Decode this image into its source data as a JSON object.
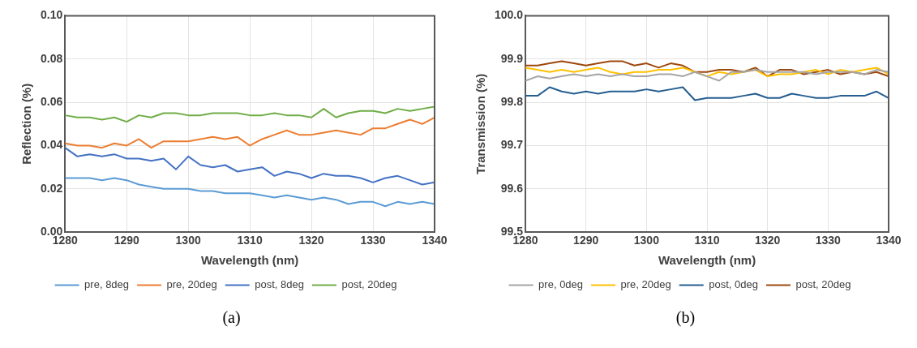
{
  "chart_data": [
    {
      "type": "line",
      "xlabel": "Wavelength (nm)",
      "ylabel": "Reflection (%)",
      "legend": "bottom",
      "grid": true,
      "marker": "none",
      "line_style": "solid",
      "annotations": [
        "(a)"
      ],
      "x": [
        1280,
        1282,
        1284,
        1286,
        1288,
        1290,
        1292,
        1294,
        1296,
        1298,
        1300,
        1302,
        1304,
        1306,
        1308,
        1310,
        1312,
        1314,
        1316,
        1318,
        1320,
        1322,
        1324,
        1326,
        1328,
        1330,
        1332,
        1334,
        1336,
        1338,
        1340
      ],
      "xlim": [
        1280,
        1340
      ],
      "xticks": [
        1280,
        1290,
        1300,
        1310,
        1320,
        1330,
        1340
      ],
      "ylim": [
        0,
        0.1
      ],
      "yticks": [
        {
          "value": 0,
          "label": "0.00"
        },
        {
          "value": 0.02,
          "label": "0.02"
        },
        {
          "value": 0.04,
          "label": "0.04"
        },
        {
          "value": 0.06,
          "label": "0.06"
        },
        {
          "value": 0.08,
          "label": "0.08"
        },
        {
          "value": 0.1,
          "label": "0.10"
        }
      ],
      "series": [
        {
          "name": "pre, 8deg",
          "color": "#5b9bd5",
          "values": [
            0.025,
            0.025,
            0.025,
            0.024,
            0.025,
            0.024,
            0.022,
            0.021,
            0.02,
            0.02,
            0.02,
            0.019,
            0.019,
            0.018,
            0.018,
            0.018,
            0.017,
            0.016,
            0.017,
            0.016,
            0.015,
            0.016,
            0.015,
            0.013,
            0.014,
            0.014,
            0.012,
            0.014,
            0.013,
            0.014,
            0.013
          ]
        },
        {
          "name": "pre, 20deg",
          "color": "#ed7d31",
          "values": [
            0.041,
            0.04,
            0.04,
            0.039,
            0.041,
            0.04,
            0.043,
            0.039,
            0.042,
            0.042,
            0.042,
            0.043,
            0.044,
            0.043,
            0.044,
            0.04,
            0.043,
            0.045,
            0.047,
            0.045,
            0.045,
            0.046,
            0.047,
            0.046,
            0.045,
            0.048,
            0.048,
            0.05,
            0.052,
            0.05,
            0.053
          ]
        },
        {
          "name": "post, 8deg",
          "color": "#4472c4",
          "values": [
            0.039,
            0.035,
            0.036,
            0.035,
            0.036,
            0.034,
            0.034,
            0.033,
            0.034,
            0.029,
            0.035,
            0.031,
            0.03,
            0.031,
            0.028,
            0.029,
            0.03,
            0.026,
            0.028,
            0.027,
            0.025,
            0.027,
            0.026,
            0.026,
            0.025,
            0.023,
            0.025,
            0.026,
            0.024,
            0.022,
            0.023
          ]
        },
        {
          "name": "post, 20deg",
          "color": "#70ad47",
          "values": [
            0.054,
            0.053,
            0.053,
            0.052,
            0.053,
            0.051,
            0.054,
            0.053,
            0.055,
            0.055,
            0.054,
            0.054,
            0.055,
            0.055,
            0.055,
            0.054,
            0.054,
            0.055,
            0.054,
            0.054,
            0.053,
            0.057,
            0.053,
            0.055,
            0.056,
            0.056,
            0.055,
            0.057,
            0.056,
            0.057,
            0.058
          ]
        }
      ]
    },
    {
      "type": "line",
      "xlabel": "Wavelength (nm)",
      "ylabel": "Transmission (%)",
      "legend": "bottom",
      "grid": true,
      "marker": "none",
      "line_style": "solid",
      "annotations": [
        "(b)"
      ],
      "x": [
        1280,
        1282,
        1284,
        1286,
        1288,
        1290,
        1292,
        1294,
        1296,
        1298,
        1300,
        1302,
        1304,
        1306,
        1308,
        1310,
        1312,
        1314,
        1316,
        1318,
        1320,
        1322,
        1324,
        1326,
        1328,
        1330,
        1332,
        1334,
        1336,
        1338,
        1340
      ],
      "xlim": [
        1280,
        1340
      ],
      "xticks": [
        1280,
        1290,
        1300,
        1310,
        1320,
        1330,
        1340
      ],
      "ylim": [
        99.5,
        100
      ],
      "yticks": [
        99.5,
        99.6,
        99.7,
        99.8,
        99.9,
        {
          "value": 100,
          "label": "100.0"
        }
      ],
      "series": [
        {
          "name": "pre, 0deg",
          "color": "#a5a5a5",
          "values": [
            99.85,
            99.86,
            99.855,
            99.86,
            99.865,
            99.86,
            99.865,
            99.86,
            99.865,
            99.86,
            99.86,
            99.865,
            99.865,
            99.86,
            99.87,
            99.86,
            99.85,
            99.87,
            99.87,
            99.875,
            99.87,
            99.87,
            99.87,
            99.87,
            99.865,
            99.87,
            99.87,
            99.87,
            99.865,
            99.875,
            99.87
          ]
        },
        {
          "name": "pre, 20deg",
          "color": "#ffc000",
          "values": [
            99.88,
            99.875,
            99.87,
            99.875,
            99.87,
            99.875,
            99.88,
            99.87,
            99.865,
            99.87,
            99.87,
            99.875,
            99.875,
            99.88,
            99.87,
            99.86,
            99.87,
            99.865,
            99.87,
            99.875,
            99.86,
            99.865,
            99.865,
            99.87,
            99.875,
            99.865,
            99.875,
            99.87,
            99.875,
            99.88,
            99.865
          ]
        },
        {
          "name": "post, 0deg",
          "color": "#255e91",
          "values": [
            99.815,
            99.815,
            99.835,
            99.825,
            99.82,
            99.825,
            99.82,
            99.825,
            99.825,
            99.825,
            99.83,
            99.825,
            99.83,
            99.835,
            99.805,
            99.81,
            99.81,
            99.81,
            99.815,
            99.82,
            99.81,
            99.81,
            99.82,
            99.815,
            99.81,
            99.81,
            99.815,
            99.815,
            99.815,
            99.825,
            99.81
          ]
        },
        {
          "name": "post, 20deg",
          "color": "#9e480e",
          "values": [
            99.885,
            99.885,
            99.89,
            99.895,
            99.89,
            99.885,
            99.89,
            99.895,
            99.895,
            99.885,
            99.89,
            99.88,
            99.89,
            99.885,
            99.87,
            99.87,
            99.875,
            99.875,
            99.87,
            99.88,
            99.86,
            99.875,
            99.875,
            99.865,
            99.87,
            99.875,
            99.865,
            99.87,
            99.865,
            99.87,
            99.86
          ]
        }
      ]
    }
  ]
}
